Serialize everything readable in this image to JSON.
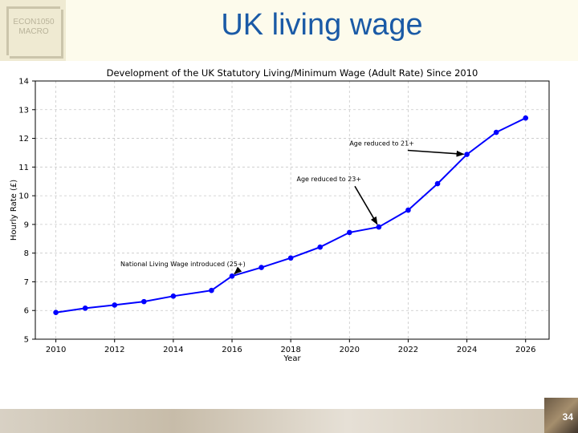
{
  "slide": {
    "logo_line1": "ECON1050",
    "logo_line2": "MACRO",
    "title": "UK living wage",
    "page_number": "34"
  },
  "chart_data": {
    "type": "line",
    "title": "Development of the UK Statutory Living/Minimum Wage (Adult Rate) Since 2010",
    "xlabel": "Year",
    "ylabel": "Hourly Rate (£)",
    "xlim": [
      2009.3,
      2026.8
    ],
    "ylim": [
      5,
      14
    ],
    "xticks": [
      2010,
      2012,
      2014,
      2016,
      2018,
      2020,
      2022,
      2024,
      2026
    ],
    "yticks": [
      5,
      6,
      7,
      8,
      9,
      10,
      11,
      12,
      13,
      14
    ],
    "grid": true,
    "line_color": "#0000ff",
    "x": [
      2010,
      2011,
      2012,
      2013,
      2014,
      2015.3,
      2016,
      2017,
      2018,
      2019,
      2020,
      2021,
      2022,
      2023,
      2024,
      2025,
      2026
    ],
    "y": [
      5.93,
      6.08,
      6.19,
      6.31,
      6.5,
      6.7,
      7.2,
      7.5,
      7.83,
      8.21,
      8.72,
      8.91,
      9.5,
      10.42,
      11.44,
      12.21,
      12.71
    ],
    "annotations": [
      {
        "text": "National Living Wage introduced (25+)",
        "text_x": 2012.2,
        "text_y": 7.55,
        "point_x": 2016,
        "point_y": 7.2
      },
      {
        "text": "Age reduced to 23+",
        "text_x": 2018.2,
        "text_y": 10.5,
        "point_x": 2021,
        "point_y": 8.91
      },
      {
        "text": "Age reduced to 21+",
        "text_x": 2020.0,
        "text_y": 11.75,
        "point_x": 2024,
        "point_y": 11.44
      }
    ]
  }
}
